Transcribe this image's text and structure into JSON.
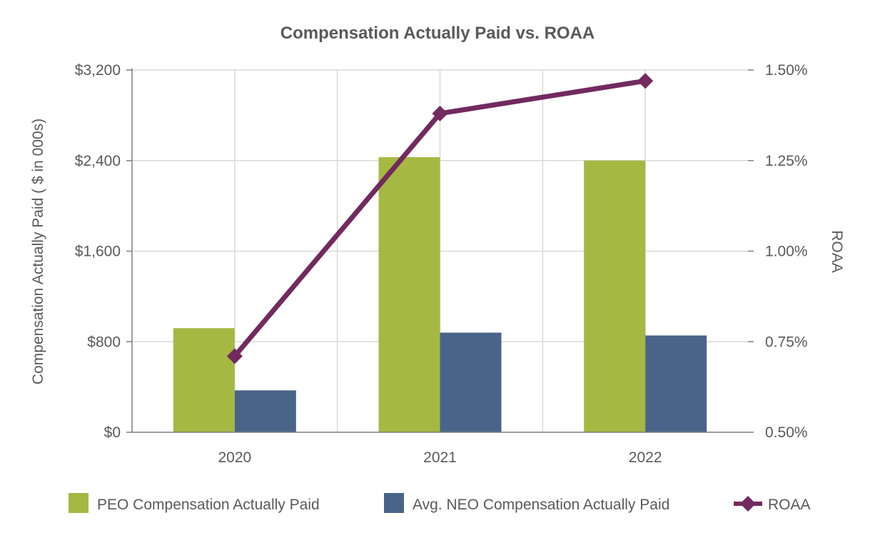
{
  "chart_data": {
    "type": "bar+line",
    "title": "Compensation Actually Paid vs. ROAA",
    "categories": [
      "2020",
      "2021",
      "2022"
    ],
    "series": [
      {
        "name": "PEO Compensation Actually Paid",
        "type": "bar",
        "axis": "left",
        "color": "#a5b942",
        "values": [
          920,
          2430,
          2400
        ]
      },
      {
        "name": "Avg. NEO Compensation Actually Paid",
        "type": "bar",
        "axis": "left",
        "color": "#4a6489",
        "values": [
          370,
          880,
          855
        ]
      },
      {
        "name": "ROAA",
        "type": "line",
        "axis": "right",
        "color": "#722a5f",
        "marker": "diamond",
        "values": [
          0.71,
          1.38,
          1.47
        ]
      }
    ],
    "y_left": {
      "label": "Compensation Actually Paid ( $ in 000s)",
      "range": [
        0,
        3200
      ],
      "ticks": [
        0,
        800,
        1600,
        2400,
        3200
      ],
      "tick_labels": [
        "$0",
        "$800",
        "$1,600",
        "$2,400",
        "$3,200"
      ]
    },
    "y_right": {
      "label": "ROAA",
      "range": [
        0.5,
        1.5
      ],
      "ticks": [
        0.5,
        0.75,
        1.0,
        1.25,
        1.5
      ],
      "tick_labels": [
        "0.50%",
        "0.75%",
        "1.00%",
        "1.25%",
        "1.50%"
      ]
    },
    "grid": true,
    "legend_position": "bottom"
  },
  "colors": {
    "grid": "#d9d9d9",
    "axis": "#7f7f7f",
    "text": "#595959"
  }
}
